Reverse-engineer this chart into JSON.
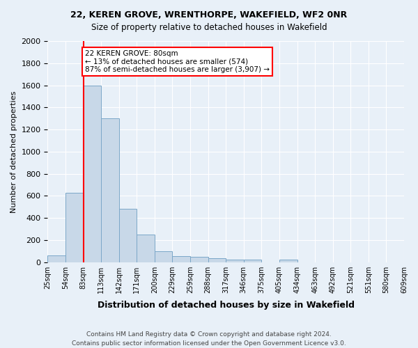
{
  "title_line1": "22, KEREN GROVE, WRENTHORPE, WAKEFIELD, WF2 0NR",
  "title_line2": "Size of property relative to detached houses in Wakefield",
  "xlabel": "Distribution of detached houses by size in Wakefield",
  "ylabel": "Number of detached properties",
  "bar_values": [
    60,
    630,
    1600,
    1300,
    480,
    250,
    100,
    55,
    50,
    35,
    25,
    20,
    0,
    20,
    0,
    0,
    0,
    0,
    0,
    0
  ],
  "bar_labels": [
    "25sqm",
    "54sqm",
    "83sqm",
    "113sqm",
    "142sqm",
    "171sqm",
    "200sqm",
    "229sqm",
    "259sqm",
    "288sqm",
    "317sqm",
    "346sqm",
    "375sqm",
    "405sqm",
    "434sqm",
    "463sqm",
    "492sqm",
    "521sqm",
    "551sqm",
    "580sqm",
    "609sqm"
  ],
  "bar_color": "#c8d8e8",
  "bar_edge_color": "#7ba7c8",
  "annotation_box_text": "22 KEREN GROVE: 80sqm\n← 13% of detached houses are smaller (574)\n87% of semi-detached houses are larger (3,907) →",
  "annotation_box_edge_color": "red",
  "red_line_x": 2,
  "ylim": [
    0,
    2000
  ],
  "yticks": [
    0,
    200,
    400,
    600,
    800,
    1000,
    1200,
    1400,
    1600,
    1800,
    2000
  ],
  "footer_line1": "Contains HM Land Registry data © Crown copyright and database right 2024.",
  "footer_line2": "Contains public sector information licensed under the Open Government Licence v3.0.",
  "background_color": "#e8f0f8",
  "plot_background": "#e8f0f8"
}
